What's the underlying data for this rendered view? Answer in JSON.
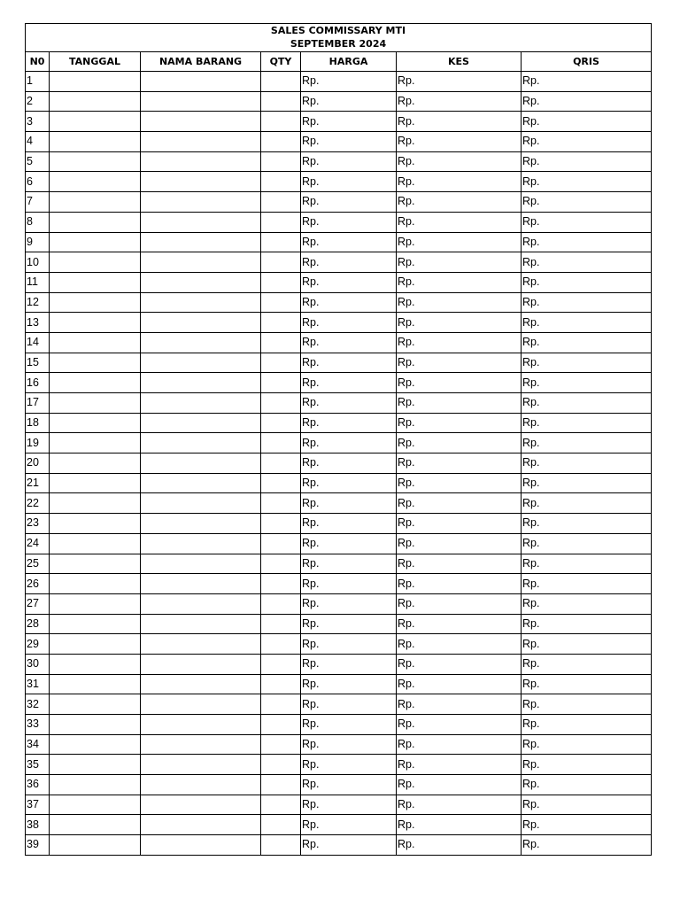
{
  "title_line1": "SALES COMMISSARY MTI",
  "title_line2": "SEPTEMBER 2024",
  "columns": [
    "N0",
    "TANGGAL",
    "NAMA BARANG",
    "QTY",
    "HARGA",
    "KES",
    "QRIS"
  ],
  "rows": [
    {
      "no": "1",
      "tanggal": "",
      "nama_barang": "",
      "qty": "",
      "harga": "Rp.",
      "kes": "Rp.",
      "qris": "Rp."
    },
    {
      "no": "2",
      "tanggal": "",
      "nama_barang": "",
      "qty": "",
      "harga": "Rp.",
      "kes": "Rp.",
      "qris": "Rp."
    },
    {
      "no": "3",
      "tanggal": "",
      "nama_barang": "",
      "qty": "",
      "harga": "Rp.",
      "kes": "Rp.",
      "qris": "Rp."
    },
    {
      "no": "4",
      "tanggal": "",
      "nama_barang": "",
      "qty": "",
      "harga": "Rp.",
      "kes": "Rp.",
      "qris": "Rp."
    },
    {
      "no": "5",
      "tanggal": "",
      "nama_barang": "",
      "qty": "",
      "harga": "Rp.",
      "kes": "Rp.",
      "qris": "Rp."
    },
    {
      "no": "6",
      "tanggal": "",
      "nama_barang": "",
      "qty": "",
      "harga": "Rp.",
      "kes": "Rp.",
      "qris": "Rp."
    },
    {
      "no": "7",
      "tanggal": "",
      "nama_barang": "",
      "qty": "",
      "harga": "Rp.",
      "kes": "Rp.",
      "qris": "Rp."
    },
    {
      "no": "8",
      "tanggal": "",
      "nama_barang": "",
      "qty": "",
      "harga": "Rp.",
      "kes": "Rp.",
      "qris": "Rp."
    },
    {
      "no": "9",
      "tanggal": "",
      "nama_barang": "",
      "qty": "",
      "harga": "Rp.",
      "kes": "Rp.",
      "qris": "Rp."
    },
    {
      "no": "10",
      "tanggal": "",
      "nama_barang": "",
      "qty": "",
      "harga": "Rp.",
      "kes": "Rp.",
      "qris": "Rp."
    },
    {
      "no": "11",
      "tanggal": "",
      "nama_barang": "",
      "qty": "",
      "harga": "Rp.",
      "kes": "Rp.",
      "qris": "Rp."
    },
    {
      "no": "12",
      "tanggal": "",
      "nama_barang": "",
      "qty": "",
      "harga": "Rp.",
      "kes": "Rp.",
      "qris": "Rp."
    },
    {
      "no": "13",
      "tanggal": "",
      "nama_barang": "",
      "qty": "",
      "harga": "Rp.",
      "kes": "Rp.",
      "qris": "Rp."
    },
    {
      "no": "14",
      "tanggal": "",
      "nama_barang": "",
      "qty": "",
      "harga": "Rp.",
      "kes": "Rp.",
      "qris": "Rp."
    },
    {
      "no": "15",
      "tanggal": "",
      "nama_barang": "",
      "qty": "",
      "harga": "Rp.",
      "kes": "Rp.",
      "qris": "Rp."
    },
    {
      "no": "16",
      "tanggal": "",
      "nama_barang": "",
      "qty": "",
      "harga": "Rp.",
      "kes": "Rp.",
      "qris": "Rp."
    },
    {
      "no": "17",
      "tanggal": "",
      "nama_barang": "",
      "qty": "",
      "harga": "Rp.",
      "kes": "Rp.",
      "qris": "Rp."
    },
    {
      "no": "18",
      "tanggal": "",
      "nama_barang": "",
      "qty": "",
      "harga": "Rp.",
      "kes": "Rp.",
      "qris": "Rp."
    },
    {
      "no": "19",
      "tanggal": "",
      "nama_barang": "",
      "qty": "",
      "harga": "Rp.",
      "kes": "Rp.",
      "qris": "Rp."
    },
    {
      "no": "20",
      "tanggal": "",
      "nama_barang": "",
      "qty": "",
      "harga": "Rp.",
      "kes": "Rp.",
      "qris": "Rp."
    },
    {
      "no": "21",
      "tanggal": "",
      "nama_barang": "",
      "qty": "",
      "harga": "Rp.",
      "kes": "Rp.",
      "qris": "Rp."
    },
    {
      "no": "22",
      "tanggal": "",
      "nama_barang": "",
      "qty": "",
      "harga": "Rp.",
      "kes": "Rp.",
      "qris": "Rp."
    },
    {
      "no": "23",
      "tanggal": "",
      "nama_barang": "",
      "qty": "",
      "harga": "Rp.",
      "kes": "Rp.",
      "qris": "Rp."
    },
    {
      "no": "24",
      "tanggal": "",
      "nama_barang": "",
      "qty": "",
      "harga": "Rp.",
      "kes": "Rp.",
      "qris": "Rp."
    },
    {
      "no": "25",
      "tanggal": "",
      "nama_barang": "",
      "qty": "",
      "harga": "Rp.",
      "kes": "Rp.",
      "qris": "Rp."
    },
    {
      "no": "26",
      "tanggal": "",
      "nama_barang": "",
      "qty": "",
      "harga": "Rp.",
      "kes": "Rp.",
      "qris": "Rp."
    },
    {
      "no": "27",
      "tanggal": "",
      "nama_barang": "",
      "qty": "",
      "harga": "Rp.",
      "kes": "Rp.",
      "qris": "Rp."
    },
    {
      "no": "28",
      "tanggal": "",
      "nama_barang": "",
      "qty": "",
      "harga": "Rp.",
      "kes": "Rp.",
      "qris": "Rp."
    },
    {
      "no": "29",
      "tanggal": "",
      "nama_barang": "",
      "qty": "",
      "harga": "Rp.",
      "kes": "Rp.",
      "qris": "Rp."
    },
    {
      "no": "30",
      "tanggal": "",
      "nama_barang": "",
      "qty": "",
      "harga": "Rp.",
      "kes": "Rp.",
      "qris": "Rp."
    },
    {
      "no": "31",
      "tanggal": "",
      "nama_barang": "",
      "qty": "",
      "harga": "Rp.",
      "kes": "Rp.",
      "qris": "Rp."
    },
    {
      "no": "32",
      "tanggal": "",
      "nama_barang": "",
      "qty": "",
      "harga": "Rp.",
      "kes": "Rp.",
      "qris": "Rp."
    },
    {
      "no": "33",
      "tanggal": "",
      "nama_barang": "",
      "qty": "",
      "harga": "Rp.",
      "kes": "Rp.",
      "qris": "Rp."
    },
    {
      "no": "34",
      "tanggal": "",
      "nama_barang": "",
      "qty": "",
      "harga": "Rp.",
      "kes": "Rp.",
      "qris": "Rp."
    },
    {
      "no": "35",
      "tanggal": "",
      "nama_barang": "",
      "qty": "",
      "harga": "Rp.",
      "kes": "Rp.",
      "qris": "Rp."
    },
    {
      "no": "36",
      "tanggal": "",
      "nama_barang": "",
      "qty": "",
      "harga": "Rp.",
      "kes": "Rp.",
      "qris": "Rp."
    },
    {
      "no": "37",
      "tanggal": "",
      "nama_barang": "",
      "qty": "",
      "harga": "Rp.",
      "kes": "Rp.",
      "qris": "Rp."
    },
    {
      "no": "38",
      "tanggal": "",
      "nama_barang": "",
      "qty": "",
      "harga": "Rp.",
      "kes": "Rp.",
      "qris": "Rp."
    },
    {
      "no": "39",
      "tanggal": "",
      "nama_barang": "",
      "qty": "",
      "harga": "Rp.",
      "kes": "Rp.",
      "qris": "Rp."
    }
  ]
}
